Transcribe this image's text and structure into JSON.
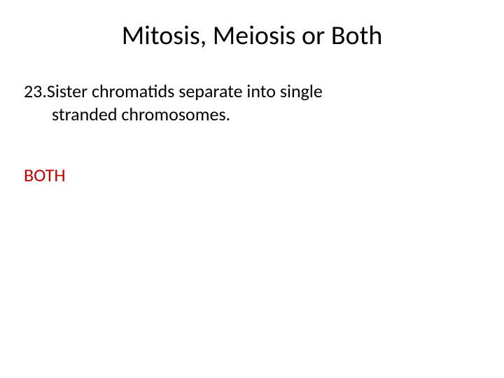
{
  "slide": {
    "title": "Mitosis, Meiosis or Both",
    "question_number": "23.",
    "question_line1": "Sister chromatids separate into single",
    "question_line2": "stranded chromosomes.",
    "answer": "BOTH",
    "colors": {
      "background": "#ffffff",
      "title_color": "#000000",
      "question_color": "#000000",
      "answer_color": "#c00000"
    },
    "typography": {
      "title_fontsize": 38,
      "body_fontsize": 26,
      "font_family": "Calibri"
    }
  }
}
